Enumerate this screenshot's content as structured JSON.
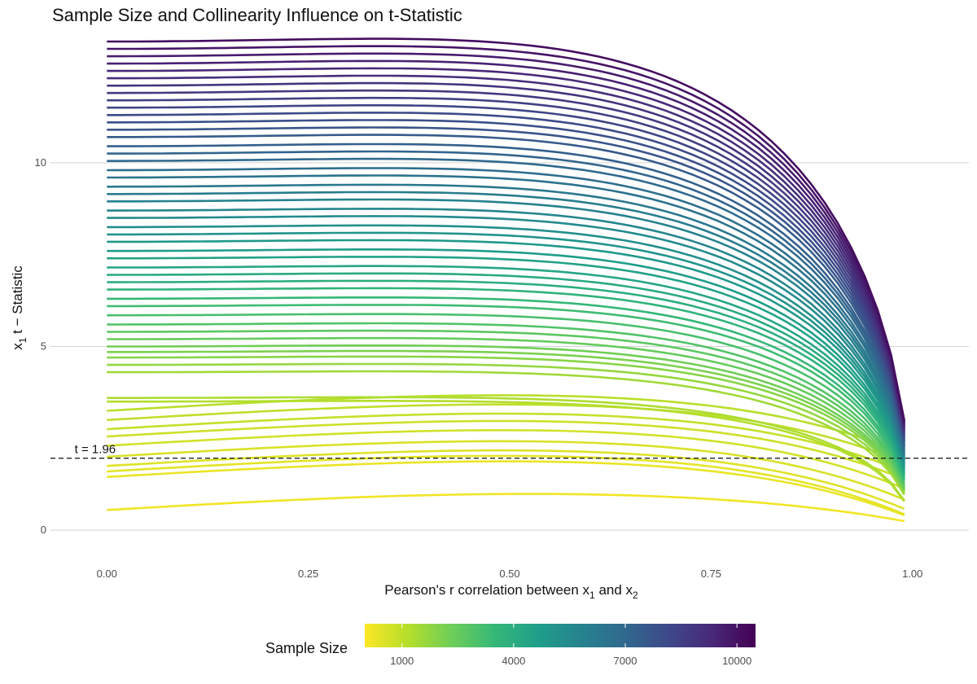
{
  "chart_data": {
    "type": "line",
    "title": "Sample Size and Collinearity Influence on t-Statistic",
    "xlabel": {
      "pre": "Pearson's r correlation between x",
      "sub1": "1",
      "mid": " and x",
      "sub2": "2"
    },
    "ylabel": {
      "pre": "x",
      "sub": "1",
      "post": " t − Statistic"
    },
    "xlim": [
      -0.07,
      1.07
    ],
    "ylim": [
      -0.75,
      13.5
    ],
    "x_ticks": [
      {
        "value": 0,
        "label": "0.00"
      },
      {
        "value": 0.25,
        "label": "0.25"
      },
      {
        "value": 0.5,
        "label": "0.50"
      },
      {
        "value": 0.75,
        "label": "0.75"
      },
      {
        "value": 1.0,
        "label": "1.00"
      }
    ],
    "y_ticks": [
      {
        "value": 0,
        "label": "0"
      },
      {
        "value": 5,
        "label": "5"
      },
      {
        "value": 10,
        "label": "10"
      }
    ],
    "grid": "horizontal major",
    "x_max_data": 0.99,
    "reference_line": {
      "y": 1.96,
      "style": "dashed",
      "label": "t = 1.96"
    },
    "color_scale": {
      "title": "Sample Size",
      "palette": [
        "#fde725",
        "#b5de2b",
        "#6ece58",
        "#35b779",
        "#1f9e89",
        "#26828e",
        "#31688e",
        "#3e4989",
        "#482878",
        "#440154"
      ],
      "min": 0,
      "max": 10500,
      "ticks": [
        1000,
        4000,
        7000,
        10000
      ],
      "position": "bottom"
    },
    "series_model": "t(r) = t0 * (1 - r^2)^0.5 * (1 + 0.6*r^2) for large n; curves whose start t0 < 3.5 run nearly flat",
    "series": [
      {
        "n": 200,
        "t0": 0.55
      },
      {
        "n": 300,
        "t0": 1.45
      },
      {
        "n": 400,
        "t0": 1.6
      },
      {
        "n": 500,
        "t0": 1.75
      },
      {
        "n": 600,
        "t0": 2.0
      },
      {
        "n": 700,
        "t0": 2.3
      },
      {
        "n": 800,
        "t0": 2.55
      },
      {
        "n": 900,
        "t0": 2.75
      },
      {
        "n": 1000,
        "t0": 3.0
      },
      {
        "n": 1100,
        "t0": 3.25
      },
      {
        "n": 1200,
        "t0": 3.5
      },
      {
        "n": 1300,
        "t0": 3.6
      },
      {
        "n": 1500,
        "t0": 4.3
      },
      {
        "n": 1700,
        "t0": 4.5
      },
      {
        "n": 1900,
        "t0": 4.7
      },
      {
        "n": 2100,
        "t0": 4.85
      },
      {
        "n": 2300,
        "t0": 5.0
      },
      {
        "n": 2500,
        "t0": 5.2
      },
      {
        "n": 2700,
        "t0": 5.4
      },
      {
        "n": 2900,
        "t0": 5.6
      },
      {
        "n": 3100,
        "t0": 5.85
      },
      {
        "n": 3300,
        "t0": 6.1
      },
      {
        "n": 3500,
        "t0": 6.3
      },
      {
        "n": 3700,
        "t0": 6.55
      },
      {
        "n": 3900,
        "t0": 6.75
      },
      {
        "n": 4100,
        "t0": 6.95
      },
      {
        "n": 4300,
        "t0": 7.15
      },
      {
        "n": 4500,
        "t0": 7.4
      },
      {
        "n": 4700,
        "t0": 7.6
      },
      {
        "n": 4900,
        "t0": 7.85
      },
      {
        "n": 5100,
        "t0": 8.05
      },
      {
        "n": 5300,
        "t0": 8.25
      },
      {
        "n": 5500,
        "t0": 8.5
      },
      {
        "n": 5700,
        "t0": 8.7
      },
      {
        "n": 5900,
        "t0": 8.95
      },
      {
        "n": 6100,
        "t0": 9.15
      },
      {
        "n": 6300,
        "t0": 9.35
      },
      {
        "n": 6500,
        "t0": 9.6
      },
      {
        "n": 6700,
        "t0": 9.8
      },
      {
        "n": 6900,
        "t0": 10.05
      },
      {
        "n": 7100,
        "t0": 10.25
      },
      {
        "n": 7300,
        "t0": 10.45
      },
      {
        "n": 7500,
        "t0": 10.7
      },
      {
        "n": 7700,
        "t0": 10.9
      },
      {
        "n": 7900,
        "t0": 11.1
      },
      {
        "n": 8100,
        "t0": 11.3
      },
      {
        "n": 8300,
        "t0": 11.5
      },
      {
        "n": 8500,
        "t0": 11.7
      },
      {
        "n": 8700,
        "t0": 11.9
      },
      {
        "n": 8900,
        "t0": 12.1
      },
      {
        "n": 9100,
        "t0": 12.3
      },
      {
        "n": 9300,
        "t0": 12.5
      },
      {
        "n": 9500,
        "t0": 12.7
      },
      {
        "n": 9700,
        "t0": 12.9
      },
      {
        "n": 9900,
        "t0": 13.1
      },
      {
        "n": 10100,
        "t0": 13.3
      }
    ]
  }
}
